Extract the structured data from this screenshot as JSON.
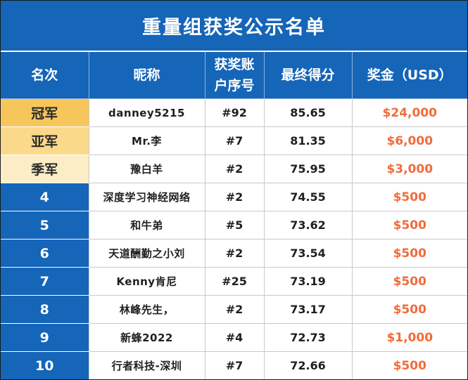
{
  "title": "重量组获奖公示名单",
  "headers": {
    "rank": "名次",
    "nickname": "昵称",
    "account_line1": "获奖账",
    "account_line2": "户序号",
    "score": "最终得分",
    "prize": "奖金（USD）"
  },
  "colors": {
    "header_blue": "#1565b8",
    "gold": "#f7c65b",
    "silver": "#fbd98b",
    "bronze": "#fdedc7",
    "prize_orange": "#f26b3a"
  },
  "rows": [
    {
      "rank": "冠军",
      "nickname": "danney5215",
      "account": "#92",
      "score": "85.65",
      "prize": "$24,000"
    },
    {
      "rank": "亚军",
      "nickname": "Mr.李",
      "account": "#7",
      "score": "81.35",
      "prize": "$6,000"
    },
    {
      "rank": "季军",
      "nickname": "豫白羊",
      "account": "#2",
      "score": "75.95",
      "prize": "$3,000"
    },
    {
      "rank": "4",
      "nickname": "深度学习神经网络",
      "account": "#2",
      "score": "74.55",
      "prize": "$500"
    },
    {
      "rank": "5",
      "nickname": "和牛弟",
      "account": "#5",
      "score": "73.62",
      "prize": "$500"
    },
    {
      "rank": "6",
      "nickname": "天道酬勤之小刘",
      "account": "#2",
      "score": "73.54",
      "prize": "$500"
    },
    {
      "rank": "7",
      "nickname": "Kenny肯尼",
      "account": "#25",
      "score": "73.19",
      "prize": "$500"
    },
    {
      "rank": "8",
      "nickname": "林峰先生，",
      "account": "#2",
      "score": "73.17",
      "prize": "$500"
    },
    {
      "rank": "9",
      "nickname": "新蜂2022",
      "account": "#4",
      "score": "72.73",
      "prize": "$1,000"
    },
    {
      "rank": "10",
      "nickname": "行者科技-深圳",
      "account": "#7",
      "score": "72.66",
      "prize": "$500"
    }
  ]
}
